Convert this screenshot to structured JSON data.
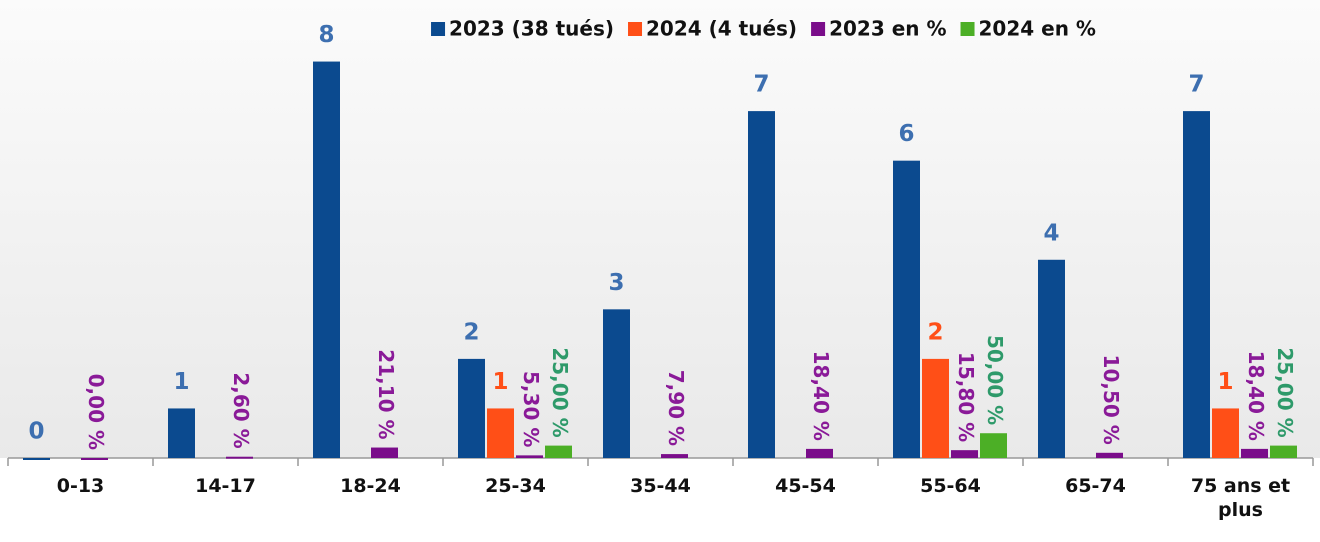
{
  "chart_data": {
    "type": "bar",
    "categories": [
      "0-13",
      "14-17",
      "18-24",
      "25-34",
      "35-44",
      "45-54",
      "55-64",
      "65-74",
      "75 ans et plus"
    ],
    "series": [
      {
        "name": "2023 (38 tués)",
        "color": "#0b4a8f",
        "label_color": "#3d6fb0",
        "values": [
          0,
          1,
          8,
          2,
          3,
          7,
          6,
          4,
          7
        ]
      },
      {
        "name": "2024 (4 tués)",
        "color": "#ff4f17",
        "label_color": "#ff4f17",
        "values": [
          null,
          null,
          null,
          1,
          null,
          null,
          2,
          null,
          1
        ]
      },
      {
        "name": "2023 en %",
        "color": "#7a0d8a",
        "label_color": "#8a1a98",
        "values": [
          0.0,
          0.026,
          0.211,
          0.053,
          0.079,
          0.184,
          0.158,
          0.105,
          0.184
        ],
        "value_labels": [
          "0,00 %",
          "2,60 %",
          "21,10 %",
          "5,30 %",
          "7,90 %",
          "18,40 %",
          "15,80 %",
          "10,50 %",
          "18,40 %"
        ]
      },
      {
        "name": "2024 en %",
        "color": "#4caf26",
        "label_color": "#2e9a6a",
        "values": [
          null,
          null,
          null,
          0.25,
          null,
          null,
          0.5,
          null,
          0.25
        ],
        "value_labels": [
          null,
          null,
          null,
          "25,00 %",
          null,
          null,
          "50,00 %",
          null,
          "25,00 %"
        ]
      }
    ],
    "ylim": [
      0,
      9
    ],
    "legend": "top"
  }
}
